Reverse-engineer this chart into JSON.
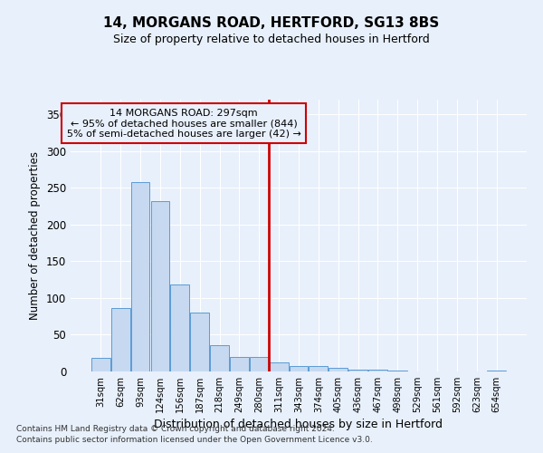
{
  "title1": "14, MORGANS ROAD, HERTFORD, SG13 8BS",
  "title2": "Size of property relative to detached houses in Hertford",
  "xlabel": "Distribution of detached houses by size in Hertford",
  "ylabel": "Number of detached properties",
  "bar_labels": [
    "31sqm",
    "62sqm",
    "93sqm",
    "124sqm",
    "156sqm",
    "187sqm",
    "218sqm",
    "249sqm",
    "280sqm",
    "311sqm",
    "343sqm",
    "374sqm",
    "405sqm",
    "436sqm",
    "467sqm",
    "498sqm",
    "529sqm",
    "561sqm",
    "592sqm",
    "623sqm",
    "654sqm"
  ],
  "bar_values": [
    18,
    86,
    258,
    232,
    118,
    80,
    36,
    20,
    20,
    12,
    8,
    8,
    5,
    3,
    2,
    1,
    0,
    0,
    0,
    0,
    1
  ],
  "bar_color": "#c6d9f0",
  "bar_edge_color": "#5b9bd5",
  "vline_color": "#cc0000",
  "vline_x_index": 9,
  "annotation_text": "14 MORGANS ROAD: 297sqm\n← 95% of detached houses are smaller (844)\n5% of semi-detached houses are larger (42) →",
  "annotation_box_color": "#cc0000",
  "ylim": [
    0,
    370
  ],
  "yticks": [
    0,
    50,
    100,
    150,
    200,
    250,
    300,
    350
  ],
  "footnote1": "Contains HM Land Registry data © Crown copyright and database right 2024.",
  "footnote2": "Contains public sector information licensed under the Open Government Licence v3.0.",
  "background_color": "#e8f0fb",
  "grid_color": "#ffffff"
}
